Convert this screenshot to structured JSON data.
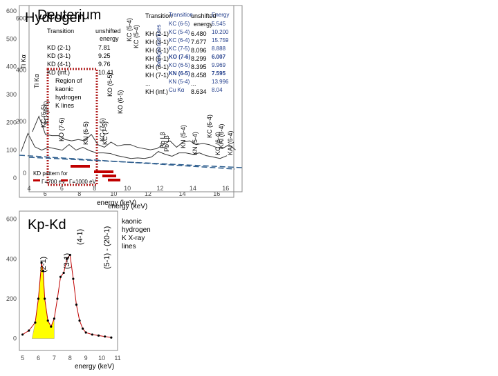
{
  "colors": {
    "axis": "#000000",
    "frame": "#888888",
    "dashed": "#2e5e8e",
    "dotted_box": "#b22222",
    "red": "#c00000",
    "yellow": "#ffff00",
    "table_blue": "#1f3b8a",
    "grid": "#dddddd"
  },
  "hydrogen": {
    "title": "Hydrogen",
    "xlabel": "energy (keV)",
    "transition_header": "Transition",
    "energy_header": "unshifted energy",
    "table": [
      [
        "KH (2-1)",
        "6.480"
      ],
      [
        "KH (3-1)",
        "7.677"
      ],
      [
        "KH (4-1)",
        "8.096"
      ],
      [
        "KH (5-1)",
        "8.299"
      ],
      [
        "KH (6-1)",
        "8.395"
      ],
      [
        "KH (7-1)",
        "8.458"
      ],
      [
        "...",
        "..."
      ],
      [
        "KH (inf.)",
        "8.634"
      ]
    ],
    "region_label": "Region of kaonic hydrogen K lines",
    "line_labels": [
      "Ti Kα",
      "KC (6-5)",
      "KC (7-5)",
      "KO (6-5)",
      "Pb Lβ",
      "KN (5-4)",
      "KC (6-4)",
      "KAl (6-4)",
      "KC (5-4)"
    ]
  },
  "deuterium": {
    "title": "Deuterium",
    "xlabel": "energy (keV)",
    "transition_header": "Transition",
    "energy_header": "unshifted energy",
    "table": [
      [
        "KD (2-1)",
        "7.81"
      ],
      [
        "KD (3-1)",
        "9.25"
      ],
      [
        "KD (4-1)",
        "9.76"
      ],
      [
        "KD (inf.)",
        "10.41"
      ]
    ],
    "bg_title": "background lines",
    "bg_header": [
      "Transition",
      "Energy"
    ],
    "bg_table": [
      [
        "KC (6-5)",
        "5.545"
      ],
      [
        "KC (5-4)",
        "10.200"
      ],
      [
        "KC (6-4)",
        "15.759"
      ],
      [
        "KC (7-5)",
        "8.888"
      ],
      [
        "KO (7-6)",
        "6.007"
      ],
      [
        "KO (6-5)",
        "9.969"
      ],
      [
        "KN (6-5)",
        "7.595"
      ],
      [
        "KN (5-4)",
        "13.996"
      ],
      [
        "Cu Kα",
        "8.04"
      ]
    ],
    "line_labels": [
      "Ti Kα",
      "KC (6-5)",
      "KO (7-6)",
      "KN (6-5)",
      "KC (7-5)",
      "KO (6-5)",
      "Pb Lβ",
      "KN (5-4)",
      "KC (6-4)",
      "KAl (6-4)",
      "KC (5-4)"
    ],
    "pattern_label": "KD pattern for",
    "legend_a": "Γ=700 eV",
    "legend_b": "Γ=1000 eV"
  },
  "kpkd": {
    "title": "Kp-Kd",
    "xlabel": "energy (keV)",
    "line_labels": [
      "(2-1)",
      "(3-1)",
      "(4-1)",
      "(5-1) - (20-1)"
    ],
    "note": "kaonic hydrogen K X-ray lines"
  },
  "chart_data": [
    {
      "type": "line",
      "title": "Hydrogen",
      "xlabel": "energy (keV)",
      "ylabel": "",
      "xlim": [
        4.5,
        17
      ],
      "ylim": [
        -30,
        620
      ],
      "xticks": [
        6,
        8,
        10,
        12,
        14,
        16
      ],
      "yticks": [
        0,
        100,
        200,
        300,
        400,
        500,
        600
      ],
      "x": [
        4.6,
        5.0,
        5.4,
        5.8,
        6.2,
        6.6,
        7.0,
        7.4,
        7.8,
        8.2,
        8.6,
        9.0,
        9.4,
        9.8,
        10.2,
        10.6,
        11.0,
        11.4,
        11.8,
        12.2,
        12.6,
        13.0,
        13.4,
        13.8,
        14.2,
        14.6,
        15.0,
        15.4,
        15.8,
        16.2,
        16.6
      ],
      "y": [
        95,
        160,
        112,
        100,
        110,
        105,
        100,
        120,
        100,
        110,
        98,
        90,
        90,
        88,
        80,
        75,
        70,
        72,
        70,
        75,
        95,
        85,
        78,
        90,
        90,
        85,
        90,
        80,
        75,
        70,
        80
      ]
    },
    {
      "type": "line",
      "title": "Deuterium",
      "xlabel": "energy (keV)",
      "ylabel": "",
      "xlim": [
        4,
        17
      ],
      "ylim": [
        -30,
        650
      ],
      "xticks": [
        4,
        6,
        8,
        10,
        12,
        14,
        16
      ],
      "yticks": [
        0,
        200,
        400,
        600
      ],
      "x": [
        4.2,
        4.6,
        5.0,
        5.4,
        5.8,
        6.2,
        6.6,
        7.0,
        7.4,
        7.8,
        8.2,
        8.6,
        9.0,
        9.4,
        9.8,
        10.2,
        10.6,
        11.0,
        11.4,
        11.8,
        12.2,
        12.6,
        13.0,
        13.4,
        13.8,
        14.2,
        14.6,
        15.0,
        15.4,
        15.8,
        16.2,
        16.6
      ],
      "y": [
        160,
        220,
        150,
        145,
        145,
        130,
        125,
        130,
        125,
        150,
        110,
        100,
        120,
        105,
        110,
        110,
        100,
        95,
        90,
        95,
        110,
        125,
        100,
        120,
        125,
        110,
        115,
        110,
        100,
        95,
        110,
        90
      ]
    },
    {
      "type": "line",
      "title": "Kp-Kd",
      "xlabel": "energy (keV)",
      "ylabel": "",
      "xlim": [
        4.8,
        11
      ],
      "ylim": [
        -60,
        640
      ],
      "xticks": [
        5,
        6,
        7,
        8,
        9,
        10,
        11
      ],
      "yticks": [
        0,
        200,
        400,
        600
      ],
      "x": [
        5.0,
        5.4,
        5.8,
        6.0,
        6.2,
        6.3,
        6.4,
        6.6,
        6.8,
        7.0,
        7.2,
        7.4,
        7.6,
        7.8,
        8.0,
        8.2,
        8.4,
        8.6,
        8.8,
        9.0,
        9.4,
        9.8,
        10.2,
        10.6
      ],
      "y": [
        20,
        40,
        80,
        200,
        380,
        340,
        200,
        90,
        60,
        100,
        200,
        310,
        330,
        400,
        420,
        300,
        170,
        90,
        50,
        30,
        20,
        15,
        10,
        5
      ]
    }
  ]
}
